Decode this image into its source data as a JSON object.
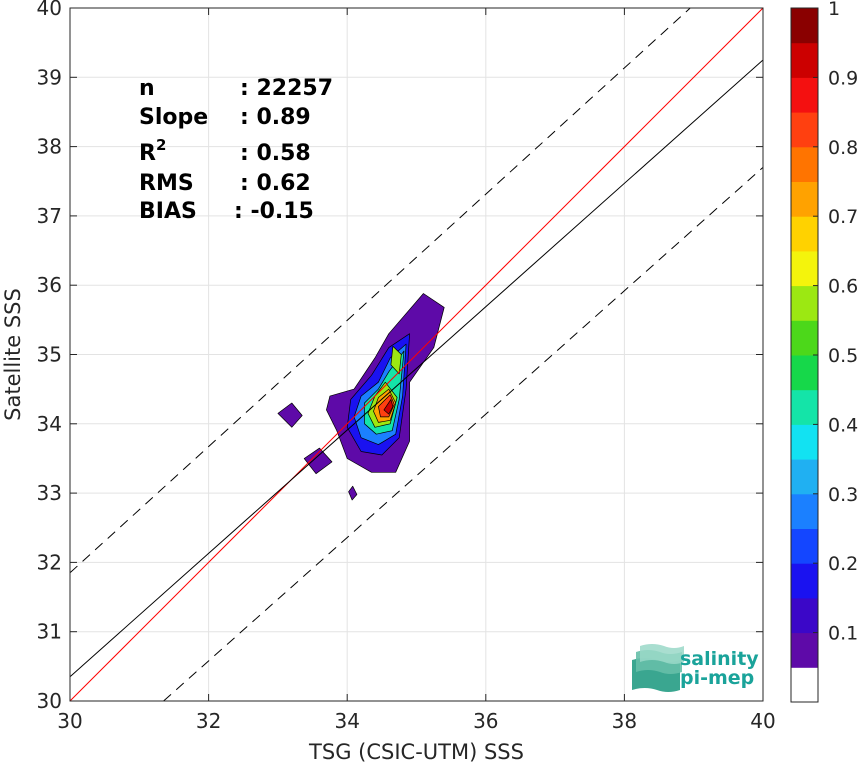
{
  "chart_data": {
    "type": "heatmap",
    "subtype": "density-contour-scatter",
    "xlabel": "TSG (CSIC-UTM) SSS",
    "ylabel": "Satellite SSS",
    "xlim": [
      30,
      40
    ],
    "ylim": [
      30,
      40
    ],
    "xticks": [
      30,
      32,
      34,
      36,
      38,
      40
    ],
    "yticks": [
      30,
      31,
      32,
      33,
      34,
      35,
      36,
      37,
      38,
      39,
      40
    ],
    "grid": true,
    "stats": [
      {
        "key": "n",
        "sup": "",
        "value": ": 22257"
      },
      {
        "key": "Slope",
        "sup": "",
        "value": ": 0.89"
      },
      {
        "key": "R",
        "sup": "2",
        "value": ": 0.58"
      },
      {
        "key": "RMS",
        "sup": "",
        "value": ": 0.62"
      },
      {
        "key": "BIAS",
        "sup": "",
        "value": ": -0.15"
      }
    ],
    "lines": [
      {
        "role": "identity",
        "color": "#ff0000",
        "dash": false,
        "p1": [
          30,
          30
        ],
        "p2": [
          40,
          40
        ]
      },
      {
        "role": "regression",
        "color": "#000000",
        "dash": false,
        "p1": [
          30,
          30.35
        ],
        "p2": [
          40,
          39.25
        ]
      },
      {
        "role": "upper-bound",
        "color": "#000000",
        "dash": true,
        "p1": [
          30,
          31.85
        ],
        "p2": [
          38.95,
          40
        ]
      },
      {
        "role": "lower-bound",
        "color": "#000000",
        "dash": true,
        "p1": [
          31.35,
          30
        ],
        "p2": [
          40,
          37.7
        ]
      }
    ],
    "colorbar": {
      "range": [
        0,
        1
      ],
      "ticks": [
        0.1,
        0.2,
        0.3,
        0.4,
        0.5,
        0.6,
        0.7,
        0.8,
        0.9,
        1
      ],
      "tick_labels": [
        "0.1",
        "0.2",
        "0.3",
        "0.4",
        "0.5",
        "0.6",
        "0.7",
        "0.8",
        "0.9",
        "1"
      ],
      "colors": [
        "#ffffff",
        "#5e0aa8",
        "#3b07c8",
        "#1a12f0",
        "#1446ff",
        "#1b80ff",
        "#20b0f2",
        "#12e2f2",
        "#14e4a8",
        "#16d84a",
        "#4cd81a",
        "#9ce812",
        "#f4f40c",
        "#ffd200",
        "#ffa200",
        "#ff7400",
        "#ff4010",
        "#f41010",
        "#cc0000",
        "#8a0000"
      ]
    },
    "density_contours": [
      {
        "level": 0.05,
        "polys": [
          [
            [
              34.6,
              35.3
            ],
            [
              35.1,
              35.88
            ],
            [
              35.4,
              35.68
            ],
            [
              35.25,
              35.1
            ],
            [
              34.9,
              34.6
            ],
            [
              34.9,
              33.75
            ],
            [
              34.7,
              33.3
            ],
            [
              34.35,
              33.3
            ],
            [
              34.0,
              33.5
            ],
            [
              33.85,
              33.9
            ],
            [
              33.7,
              34.2
            ],
            [
              33.75,
              34.4
            ],
            [
              34.1,
              34.5
            ],
            [
              34.4,
              34.95
            ]
          ],
          [
            [
              33.0,
              34.15
            ],
            [
              33.2,
              34.3
            ],
            [
              33.35,
              34.12
            ],
            [
              33.2,
              33.95
            ]
          ],
          [
            [
              33.38,
              33.5
            ],
            [
              33.6,
              33.65
            ],
            [
              33.78,
              33.45
            ],
            [
              33.55,
              33.28
            ]
          ],
          [
            [
              34.02,
              33.02
            ],
            [
              34.08,
              33.1
            ],
            [
              34.14,
              32.98
            ],
            [
              34.07,
              32.9
            ]
          ]
        ]
      },
      {
        "level": 0.15,
        "polys": [
          [
            [
              34.6,
              35.1
            ],
            [
              34.9,
              35.3
            ],
            [
              34.85,
              34.5
            ],
            [
              34.75,
              33.8
            ],
            [
              34.5,
              33.55
            ],
            [
              34.2,
              33.6
            ],
            [
              34.0,
              33.95
            ],
            [
              34.05,
              34.35
            ],
            [
              34.35,
              34.7
            ]
          ]
        ]
      },
      {
        "level": 0.25,
        "polys": [
          [
            [
              34.62,
              34.95
            ],
            [
              34.85,
              35.15
            ],
            [
              34.8,
              34.4
            ],
            [
              34.7,
              33.85
            ],
            [
              34.45,
              33.7
            ],
            [
              34.2,
              33.8
            ],
            [
              34.1,
              34.1
            ],
            [
              34.2,
              34.4
            ],
            [
              34.45,
              34.6
            ]
          ]
        ]
      },
      {
        "level": 0.4,
        "polys": [
          [
            [
              34.6,
              34.75
            ],
            [
              34.82,
              35.05
            ],
            [
              34.75,
              34.35
            ],
            [
              34.65,
              33.9
            ],
            [
              34.42,
              33.85
            ],
            [
              34.25,
              34.0
            ],
            [
              34.25,
              34.3
            ],
            [
              34.45,
              34.5
            ]
          ]
        ]
      },
      {
        "level": 0.55,
        "polys": [
          [
            [
              34.66,
              35.12
            ],
            [
              34.78,
              35.0
            ],
            [
              34.75,
              34.72
            ],
            [
              34.63,
              34.85
            ]
          ],
          [
            [
              34.55,
              34.6
            ],
            [
              34.72,
              34.38
            ],
            [
              34.62,
              34.0
            ],
            [
              34.4,
              33.95
            ],
            [
              34.3,
              34.15
            ],
            [
              34.4,
              34.4
            ]
          ]
        ]
      },
      {
        "level": 0.7,
        "polys": [
          [
            [
              34.6,
              34.5
            ],
            [
              34.7,
              34.3
            ],
            [
              34.62,
              34.05
            ],
            [
              34.45,
              34.02
            ],
            [
              34.38,
              34.18
            ],
            [
              34.45,
              34.38
            ]
          ]
        ]
      },
      {
        "level": 0.82,
        "polys": [
          [
            [
              34.62,
              34.42
            ],
            [
              34.68,
              34.28
            ],
            [
              34.6,
              34.1
            ],
            [
              34.48,
              34.1
            ],
            [
              34.45,
              34.25
            ]
          ]
        ]
      },
      {
        "level": 0.93,
        "polys": [
          [
            [
              34.63,
              34.35
            ],
            [
              34.66,
              34.25
            ],
            [
              34.6,
              34.14
            ],
            [
              34.53,
              34.2
            ]
          ]
        ]
      }
    ]
  },
  "logo": {
    "line1": "salinity",
    "line2": "pi-mep"
  }
}
